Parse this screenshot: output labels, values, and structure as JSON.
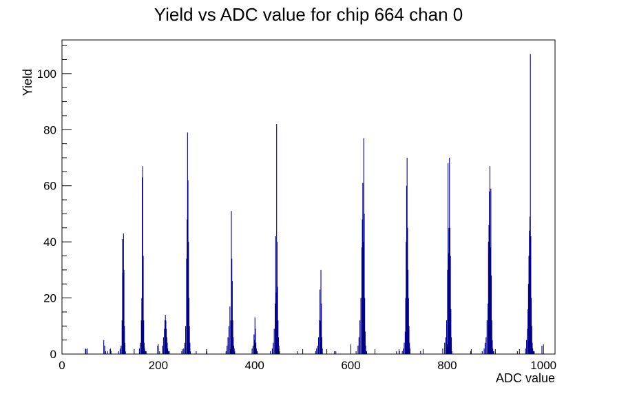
{
  "chart_data": {
    "type": "bar",
    "title": "Yield vs ADC value for chip 664 chan 0",
    "xlabel": "ADC value",
    "ylabel": "Yield",
    "xlim": [
      0,
      1024
    ],
    "ylim": [
      0,
      112
    ],
    "grid": false,
    "legend": "none",
    "x_ticks": [
      0,
      200,
      400,
      600,
      800,
      1000
    ],
    "y_ticks": [
      0,
      20,
      40,
      60,
      80,
      100
    ],
    "color": "#00008b",
    "series": [
      {
        "x": [
          48,
          52,
          86,
          88,
          90,
          94,
          100,
          101,
          117,
          120,
          122,
          124,
          125,
          126,
          127,
          128,
          129,
          130,
          131,
          160,
          162,
          164,
          165,
          166,
          167,
          168,
          169,
          170,
          171,
          172,
          173,
          174,
          198,
          202,
          208,
          210,
          212,
          213,
          214,
          215,
          216,
          217,
          218,
          219,
          220,
          221,
          222,
          248,
          252,
          254,
          256,
          258,
          259,
          260,
          261,
          262,
          263,
          264,
          265,
          266,
          278,
          300,
          340,
          342,
          344,
          346,
          348,
          350,
          351,
          352,
          353,
          354,
          355,
          356,
          357,
          358,
          394,
          396,
          398,
          399,
          400,
          401,
          402,
          403,
          404,
          405,
          432,
          436,
          438,
          440,
          442,
          443,
          444,
          445,
          446,
          447,
          448,
          449,
          450,
          451,
          488,
          526,
          528,
          530,
          532,
          534,
          535,
          536,
          537,
          538,
          539,
          540,
          565,
          568,
          610,
          614,
          616,
          618,
          620,
          622,
          623,
          624,
          625,
          626,
          627,
          628,
          629,
          630,
          631,
          632,
          694,
          700,
          706,
          708,
          710,
          712,
          713,
          714,
          715,
          716,
          717,
          718,
          719,
          720,
          721,
          722,
          744,
          790,
          794,
          796,
          798,
          800,
          801,
          802,
          803,
          804,
          805,
          806,
          807,
          808,
          809,
          848,
          872,
          876,
          878,
          880,
          882,
          884,
          885,
          886,
          887,
          888,
          889,
          890,
          891,
          892,
          893,
          894,
          895,
          896,
          945,
          962,
          964,
          966,
          967,
          968,
          969,
          970,
          971,
          972,
          973,
          974,
          975,
          976,
          977,
          978,
          979,
          980,
          996
        ],
        "values": [
          2,
          2,
          5,
          3,
          1,
          1,
          2,
          1,
          1,
          2,
          3,
          12,
          41,
          29,
          43,
          30,
          10,
          4,
          1,
          2,
          4,
          12,
          20,
          63,
          67,
          35,
          12,
          4,
          2,
          1,
          1,
          1,
          3,
          1,
          3,
          6,
          9,
          12,
          14,
          12,
          9,
          6,
          4,
          2,
          1,
          1,
          1,
          1,
          2,
          4,
          10,
          34,
          48,
          79,
          62,
          40,
          20,
          10,
          4,
          1,
          1,
          1,
          1,
          3,
          6,
          10,
          17,
          12,
          51,
          34,
          26,
          12,
          6,
          3,
          2,
          1,
          2,
          3,
          7,
          5,
          13,
          9,
          4,
          2,
          1,
          1,
          1,
          2,
          4,
          9,
          18,
          42,
          22,
          82,
          40,
          24,
          12,
          6,
          3,
          1,
          1,
          1,
          2,
          3,
          6,
          12,
          23,
          12,
          30,
          18,
          6,
          2,
          1,
          1,
          1,
          3,
          6,
          12,
          20,
          38,
          48,
          61,
          40,
          77,
          50,
          20,
          8,
          3,
          1,
          1,
          1,
          1,
          1,
          2,
          4,
          8,
          20,
          40,
          60,
          70,
          45,
          30,
          20,
          10,
          4,
          2,
          1,
          2,
          4,
          6,
          12,
          30,
          68,
          36,
          45,
          70,
          45,
          35,
          16,
          6,
          1,
          1,
          1,
          2,
          4,
          6,
          12,
          18,
          40,
          46,
          58,
          67,
          38,
          59,
          28,
          12,
          5,
          2,
          1,
          1,
          1,
          2,
          5,
          9,
          16,
          25,
          35,
          44,
          49,
          107,
          42,
          20,
          10,
          4,
          2,
          1,
          1,
          1,
          3
        ]
      }
    ]
  }
}
